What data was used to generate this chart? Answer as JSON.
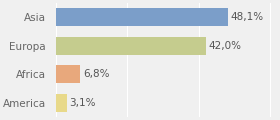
{
  "categories": [
    "America",
    "Africa",
    "Europa",
    "Asia"
  ],
  "values": [
    3.1,
    6.8,
    42.0,
    48.1
  ],
  "labels": [
    "3,1%",
    "6,8%",
    "42,0%",
    "48,1%"
  ],
  "bar_colors": [
    "#e8d98a",
    "#e8a87c",
    "#c5cc8e",
    "#7b9ec9"
  ],
  "background_color": "#f0f0f0",
  "xlim": [
    0,
    62
  ],
  "bar_height": 0.62,
  "label_fontsize": 7.5,
  "tick_fontsize": 7.5
}
